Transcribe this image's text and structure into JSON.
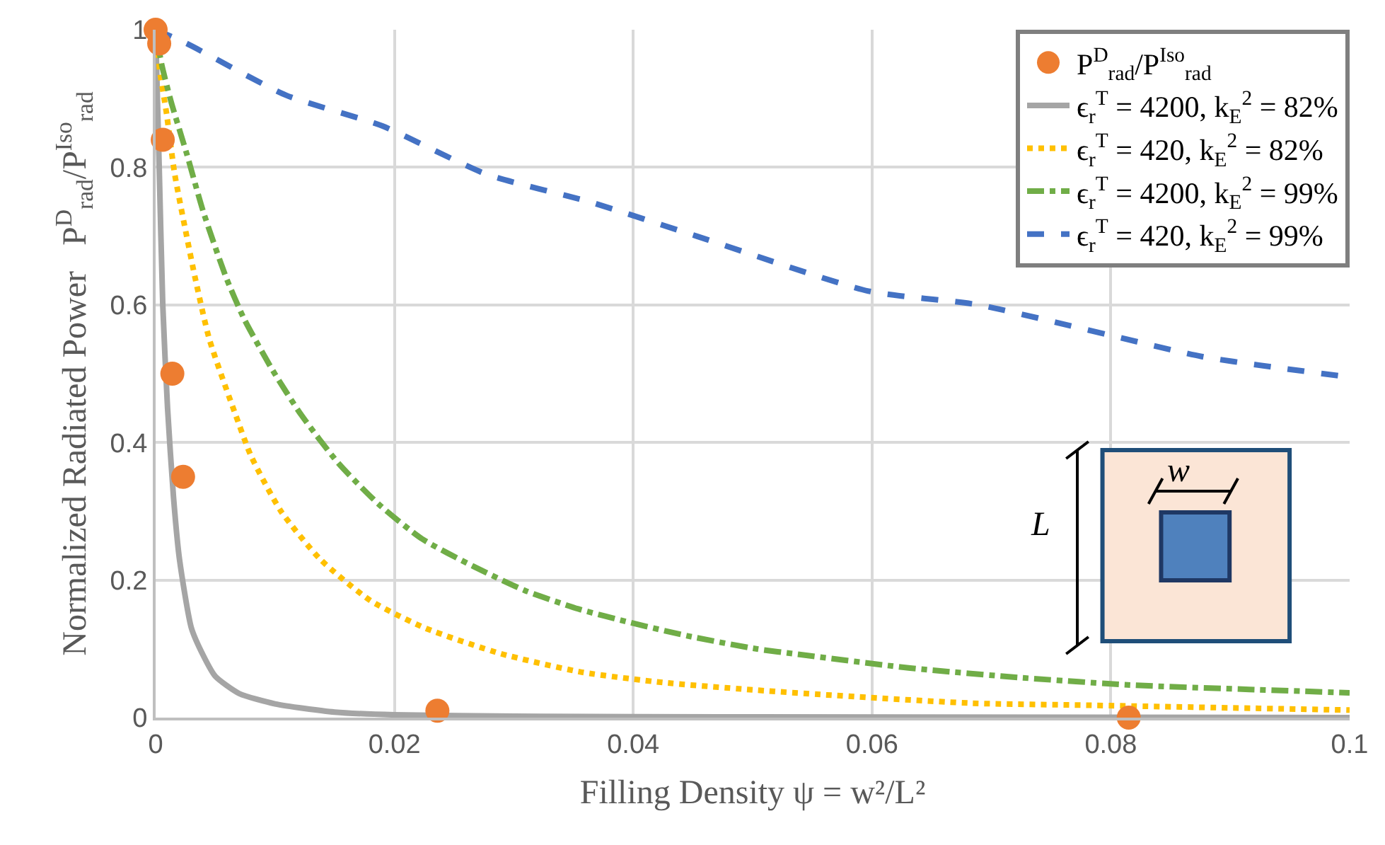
{
  "chart_data": {
    "type": "line",
    "xlabel": "Filling Density ψ = w²/L²",
    "ylabel": "Normalized Radiated Power   P$^{D}$$_{rad}$/P$^{Iso}$$_{rad}$",
    "xlim": [
      0,
      0.1
    ],
    "xticks": [
      0,
      0.02,
      0.04,
      0.06,
      0.08,
      0.1
    ],
    "ylim": [
      0,
      1
    ],
    "yticks": [
      0,
      0.2,
      0.4,
      0.6,
      0.8,
      1
    ],
    "grid": true,
    "legend": "top right",
    "series": [
      {
        "name": "P$^{D}$$_{rad}$/P$^{Iso}$$_{rad}$",
        "type": "scatter",
        "marker": "circle",
        "color": "#ed7d31",
        "x": [
          0,
          0.0003,
          0.0006,
          0.0014,
          0.0023,
          0.0236,
          0.0815
        ],
        "values": [
          1.0,
          0.98,
          0.84,
          0.5,
          0.35,
          0.01,
          0.0
        ]
      },
      {
        "name": "ϵ$_{r}$$^{T}$ = 4200, k$_{E}$$^{2}$ = 82%",
        "line_style": "solid",
        "color": "#a5a5a5",
        "x": [
          0,
          0.0003,
          0.0006,
          0.001,
          0.0015,
          0.002,
          0.003,
          0.004,
          0.005,
          0.007,
          0.01,
          0.015,
          0.02,
          0.03,
          0.05,
          0.1
        ],
        "values": [
          1,
          0.8,
          0.6,
          0.45,
          0.32,
          0.23,
          0.13,
          0.09,
          0.06,
          0.035,
          0.02,
          0.008,
          0.004,
          0.002,
          0.001,
          0.0
        ]
      },
      {
        "name": "ϵ$_{r}$$^{T}$ = 420, k$_{E}$$^{2}$ = 82%",
        "line_style": "dotted",
        "color": "#ffc000",
        "x": [
          0,
          0.0002,
          0.00035,
          0.0009,
          0.0016,
          0.0026,
          0.0033,
          0.0045,
          0.0067,
          0.008,
          0.0105,
          0.0138,
          0.018,
          0.0226,
          0.0289,
          0.0357,
          0.0425,
          0.0495,
          0.0562,
          0.0683,
          0.078,
          0.1
        ],
        "values": [
          1,
          0.97,
          0.94,
          0.88,
          0.79,
          0.7,
          0.64,
          0.55,
          0.44,
          0.38,
          0.3,
          0.23,
          0.17,
          0.13,
          0.093,
          0.066,
          0.051,
          0.041,
          0.033,
          0.021,
          0.018,
          0.011
        ]
      },
      {
        "name": "ϵ$_{r}$$^{T}$ = 4200, k$_{E}$$^{2}$ = 99%",
        "line_style": "dashdot",
        "color": "#70ad47",
        "x": [
          0,
          0.0005,
          0.0013,
          0.0026,
          0.004,
          0.0059,
          0.0074,
          0.0098,
          0.0122,
          0.0153,
          0.0187,
          0.0223,
          0.0266,
          0.0309,
          0.0354,
          0.0398,
          0.0445,
          0.0503,
          0.0538,
          0.0632,
          0.0725,
          0.0821,
          0.0916,
          0.1
        ],
        "values": [
          1,
          0.95,
          0.895,
          0.82,
          0.735,
          0.64,
          0.58,
          0.505,
          0.44,
          0.37,
          0.31,
          0.26,
          0.22,
          0.185,
          0.158,
          0.138,
          0.119,
          0.1,
          0.092,
          0.072,
          0.058,
          0.047,
          0.041,
          0.036
        ]
      },
      {
        "name": "ϵ$_{r}$$^{T}$ = 420, k$_{E}$$^{2}$ = 99%",
        "line_style": "dashed",
        "color": "#4472c4",
        "x": [
          0,
          0.0026,
          0.0109,
          0.019,
          0.0277,
          0.0363,
          0.0453,
          0.0597,
          0.0689,
          0.0876,
          0.0934,
          0.1
        ],
        "values": [
          1,
          0.98,
          0.905,
          0.86,
          0.79,
          0.75,
          0.7,
          0.62,
          0.6,
          0.525,
          0.51,
          0.495
        ]
      }
    ],
    "annotations": [
      "L",
      "w"
    ]
  }
}
